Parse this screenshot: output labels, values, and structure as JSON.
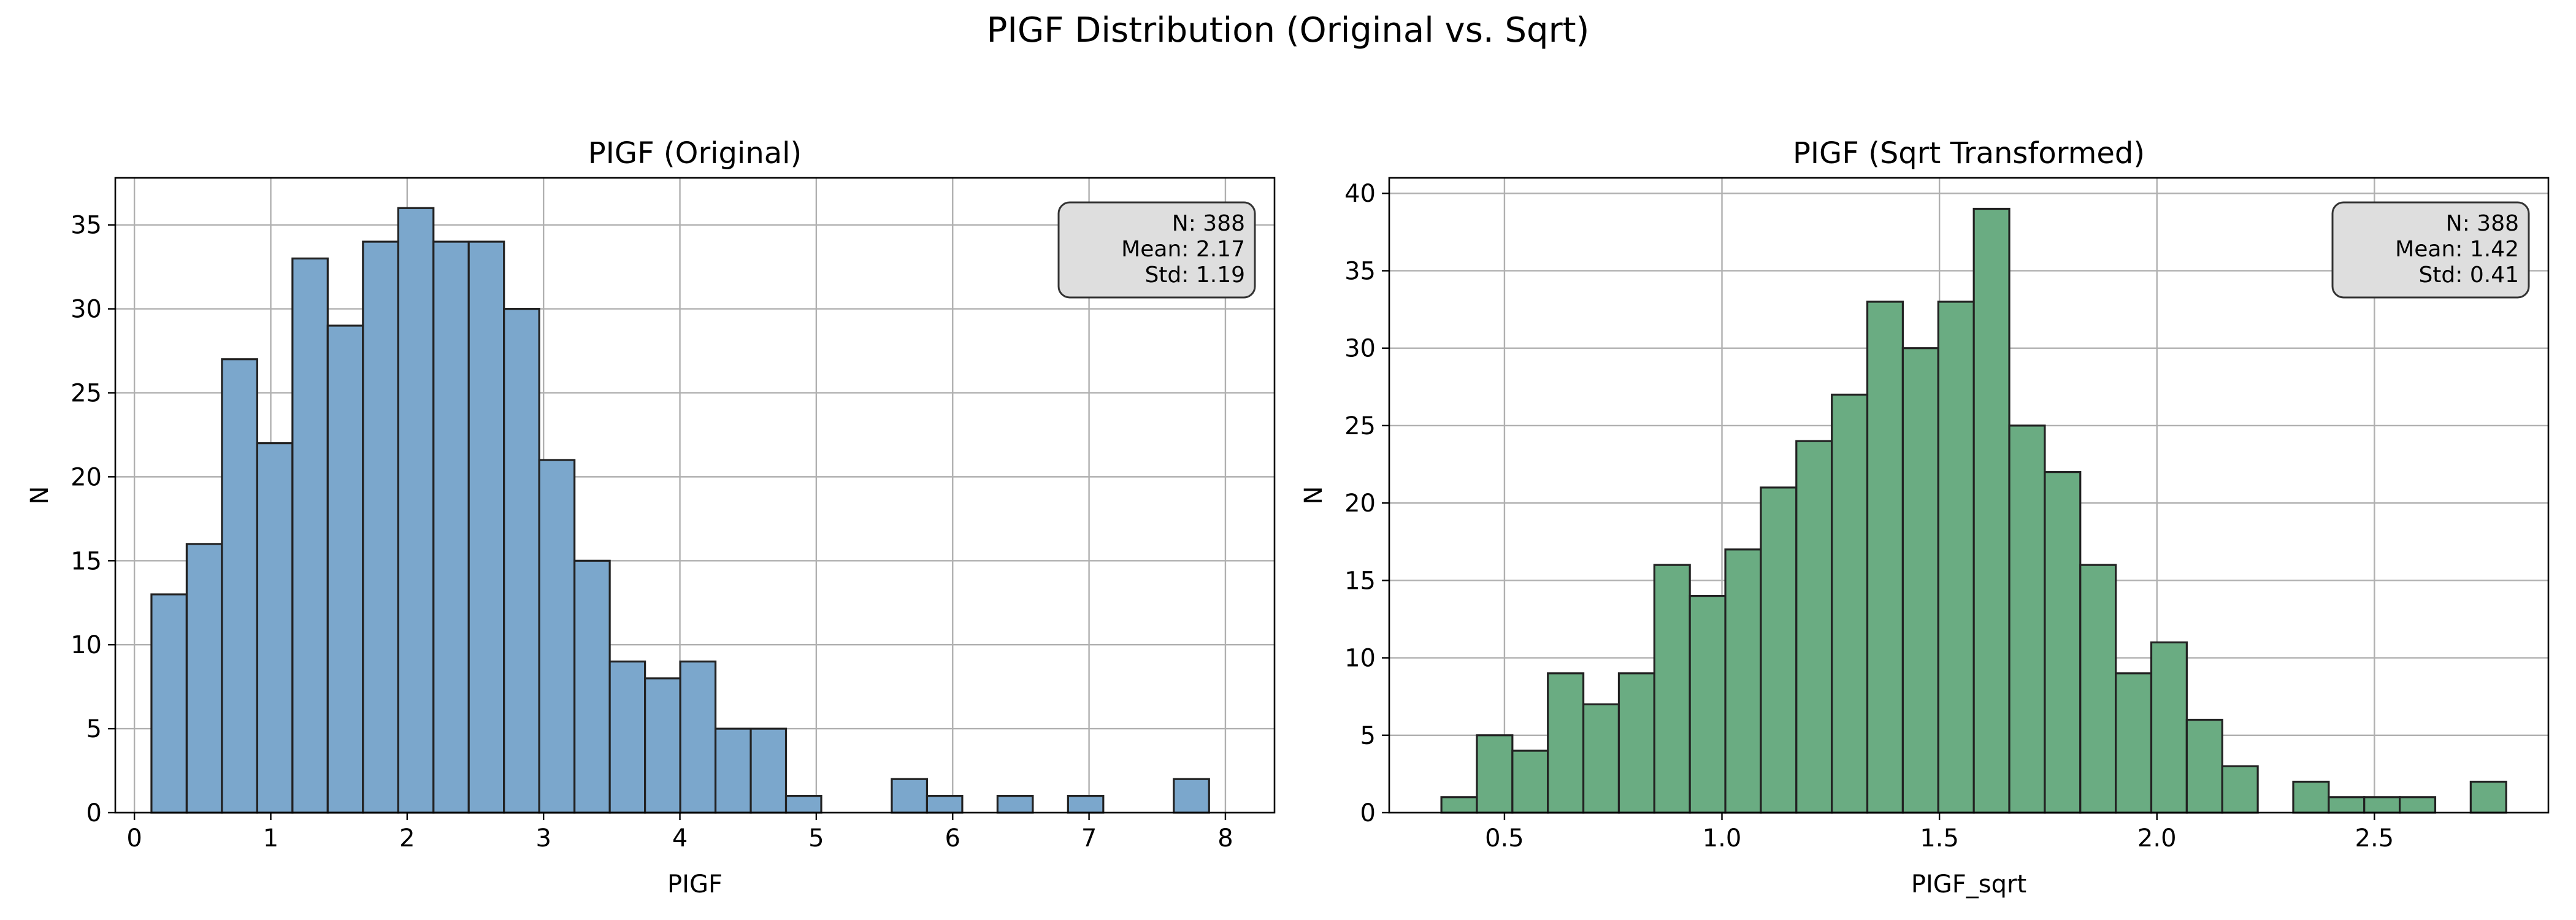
{
  "figure": {
    "suptitle": "PIGF Distribution (Original vs. Sqrt)"
  },
  "chart_data": [
    {
      "type": "bar",
      "histogram": true,
      "title": "PIGF (Original)",
      "xlabel": "PIGF",
      "ylabel": "N",
      "xlim": [
        -0.14,
        8.36
      ],
      "ylim": [
        0,
        37.8
      ],
      "xticks": [
        0,
        1,
        2,
        3,
        4,
        5,
        6,
        7,
        8
      ],
      "xtick_labels": [
        "0",
        "1",
        "2",
        "3",
        "4",
        "5",
        "6",
        "7",
        "8"
      ],
      "yticks": [
        0,
        5,
        10,
        15,
        20,
        25,
        30,
        35
      ],
      "ytick_labels": [
        "0",
        "5",
        "10",
        "15",
        "20",
        "25",
        "30",
        "35"
      ],
      "grid": true,
      "bar_color": "#7ba7cc",
      "edge_color": "#222222",
      "bin_start": 0.125,
      "bin_width": 0.2585,
      "values": [
        13,
        16,
        27,
        22,
        33,
        29,
        34,
        36,
        34,
        34,
        30,
        21,
        15,
        9,
        8,
        9,
        5,
        5,
        1,
        0,
        0,
        2,
        1,
        0,
        1,
        0,
        1,
        0,
        0,
        2
      ],
      "stats_box": {
        "lines": [
          "N: 388",
          "Mean: 2.17",
          "Std: 1.19"
        ],
        "placement": "top-right"
      }
    },
    {
      "type": "bar",
      "histogram": true,
      "title": "PIGF (Sqrt Transformed)",
      "xlabel": "PIGF_sqrt",
      "ylabel": "N",
      "xlim": [
        0.235,
        2.9
      ],
      "ylim": [
        0,
        41
      ],
      "xticks": [
        0.5,
        1.0,
        1.5,
        2.0,
        2.5
      ],
      "xtick_labels": [
        "0.5",
        "1.0",
        "1.5",
        "2.0",
        "2.5"
      ],
      "yticks": [
        0,
        5,
        10,
        15,
        20,
        25,
        30,
        35,
        40
      ],
      "ytick_labels": [
        "0",
        "5",
        "10",
        "15",
        "20",
        "25",
        "30",
        "35",
        "40"
      ],
      "grid": true,
      "bar_color": "#6aac82",
      "edge_color": "#222222",
      "bin_start": 0.355,
      "bin_width": 0.0816,
      "values": [
        1,
        5,
        4,
        9,
        7,
        9,
        16,
        14,
        17,
        21,
        24,
        27,
        33,
        30,
        33,
        39,
        25,
        22,
        16,
        9,
        11,
        6,
        3,
        0,
        2,
        1,
        1,
        1,
        0,
        2
      ],
      "stats_box": {
        "lines": [
          "N: 388",
          "Mean: 1.42",
          "Std: 0.41"
        ],
        "placement": "top-right"
      }
    }
  ]
}
